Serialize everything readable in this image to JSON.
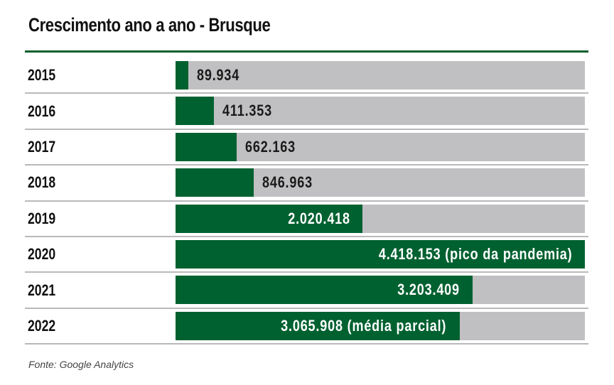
{
  "chart_data": {
    "type": "bar",
    "orientation": "horizontal",
    "title": "Crescimento ano a ano - Brusque",
    "categories": [
      "2015",
      "2016",
      "2017",
      "2018",
      "2019",
      "2020",
      "2021",
      "2022"
    ],
    "values": [
      89934,
      411353,
      662163,
      846963,
      2020418,
      4418153,
      3203409,
      3065908
    ],
    "labels": [
      "89.934",
      "411.353",
      "662.163",
      "846.963",
      "2.020.418",
      "4.418.153 (pico da pandemia)",
      "3.203.409",
      "3.065.908 (média parcial)"
    ],
    "xlim": [
      0,
      4418153
    ],
    "xlabel": "",
    "ylabel": "",
    "grid": false,
    "legend": "none",
    "source": "Fonte: Google Analytics",
    "colors": {
      "bar": "#006130",
      "track": "#c0bfc1",
      "rule": "#0b5e2c"
    }
  }
}
